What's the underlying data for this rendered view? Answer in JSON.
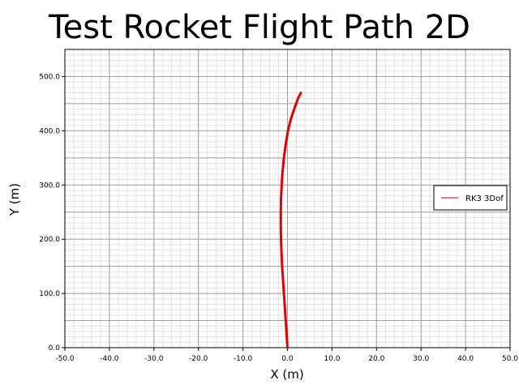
{
  "chart_data": {
    "type": "line",
    "title": "Test Rocket Flight Path 2D",
    "xlabel": "X (m)",
    "ylabel": "Y (m)",
    "xlim": [
      -50,
      50
    ],
    "ylim": [
      0,
      550
    ],
    "grid": true,
    "legend_position": "right",
    "x_ticks": [
      -50,
      -40,
      -30,
      -20,
      -10,
      0,
      10,
      20,
      30,
      40,
      50
    ],
    "y_ticks": [
      0,
      100,
      200,
      300,
      400,
      500
    ],
    "x_tick_labels": [
      "-50.0",
      "-40.0",
      "-30.0",
      "-20.0",
      "-10.0",
      "0.0",
      "10.0",
      "20.0",
      "30.0",
      "40.0",
      "50.0"
    ],
    "y_tick_labels": [
      "0.0",
      "100.0",
      "200.0",
      "300.0",
      "400.0",
      "500.0"
    ],
    "series": [
      {
        "name": "RK3 3Dof",
        "color": "#e00000",
        "x": [
          0.0,
          -0.2,
          -0.4,
          -0.6,
          -0.8,
          -1.0,
          -1.2,
          -1.35,
          -1.45,
          -1.5,
          -1.5,
          -1.45,
          -1.3,
          -1.1,
          -0.8,
          -0.4,
          0.1,
          0.7,
          1.5,
          2.4,
          3.0
        ],
        "y": [
          0,
          25,
          50,
          75,
          100,
          125,
          150,
          175,
          200,
          225,
          250,
          275,
          300,
          325,
          350,
          375,
          400,
          420,
          440,
          460,
          470
        ]
      }
    ]
  }
}
